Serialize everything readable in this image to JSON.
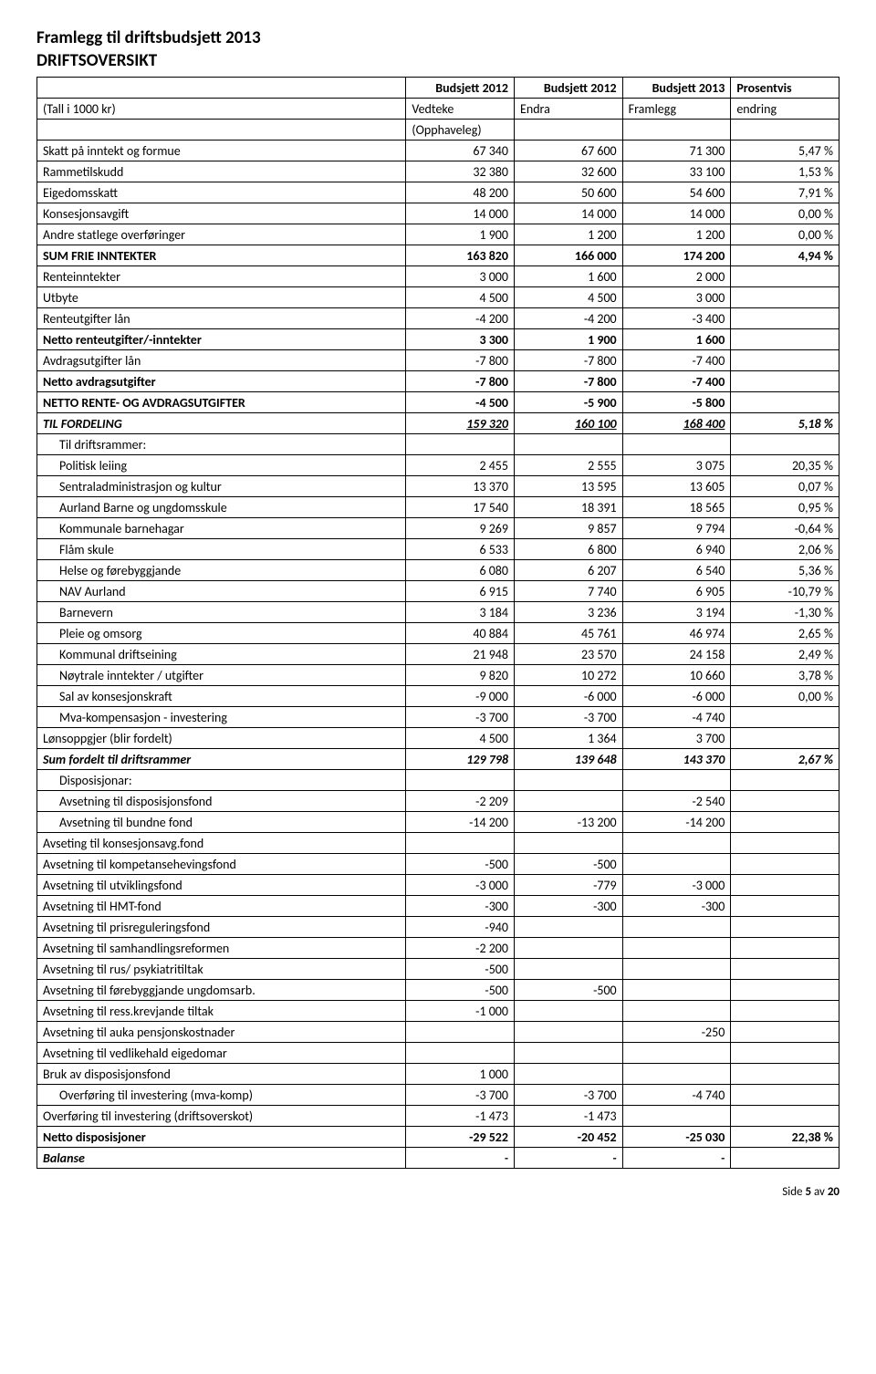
{
  "title1": "Framlegg til driftsbudsjett 2013",
  "title2": "DRIFTSOVERSIKT",
  "header": {
    "c1": "Budsjett 2012",
    "c2": "Budsjett 2012",
    "c3": "Budsjett 2013",
    "c4": "Prosentvis"
  },
  "sub": {
    "label": "(Tall i 1000 kr)",
    "c1": "Vedteke",
    "c2": "Endra",
    "c3": "Framlegg",
    "c4": "endring"
  },
  "opphaveleg": "(Opphaveleg)",
  "rows": [
    {
      "label": "Skatt på inntekt og formue",
      "c1": "67 340",
      "c2": "67 600",
      "c3": "71 300",
      "c4": "5,47 %"
    },
    {
      "label": "Rammetilskudd",
      "c1": "32 380",
      "c2": "32 600",
      "c3": "33 100",
      "c4": "1,53 %"
    },
    {
      "label": "Eigedomsskatt",
      "c1": "48 200",
      "c2": "50 600",
      "c3": "54 600",
      "c4": "7,91 %"
    },
    {
      "label": "Konsesjonsavgift",
      "c1": "14 000",
      "c2": "14 000",
      "c3": "14 000",
      "c4": "0,00 %"
    },
    {
      "label": "Andre statlege overføringer",
      "c1": "1 900",
      "c2": "1 200",
      "c3": "1 200",
      "c4": "0,00 %"
    },
    {
      "label": "SUM FRIE INNTEKTER",
      "c1": "163 820",
      "c2": "166 000",
      "c3": "174 200",
      "c4": "4,94 %",
      "style": "bold"
    },
    {
      "label": "Renteinntekter",
      "c1": "3 000",
      "c2": "1 600",
      "c3": "2 000",
      "c4": ""
    },
    {
      "label": "Utbyte",
      "c1": "4 500",
      "c2": "4 500",
      "c3": "3 000",
      "c4": ""
    },
    {
      "label": "Renteutgifter lån",
      "c1": "-4 200",
      "c2": "-4 200",
      "c3": "-3 400",
      "c4": ""
    },
    {
      "label": "Netto renteutgifter/-inntekter",
      "c1": "3 300",
      "c2": "1 900",
      "c3": "1 600",
      "c4": "",
      "style": "bold"
    },
    {
      "label": "Avdragsutgifter lån",
      "c1": "-7 800",
      "c2": "-7 800",
      "c3": "-7 400",
      "c4": ""
    },
    {
      "label": "Netto avdragsutgifter",
      "c1": "-7 800",
      "c2": "-7 800",
      "c3": "-7 400",
      "c4": "",
      "style": "bold"
    },
    {
      "label": "NETTO RENTE- OG AVDRAGSUTGIFTER",
      "c1": "-4 500",
      "c2": "-5 900",
      "c3": "-5 800",
      "c4": "",
      "style": "bold"
    },
    {
      "label": "TIL FORDELING",
      "c1": "159 320",
      "c2": "160 100",
      "c3": "168 400",
      "c4": "5,18 %",
      "style": "bold-italic",
      "underline": true
    },
    {
      "label": "Til driftsrammer:",
      "c1": "",
      "c2": "",
      "c3": "",
      "c4": "",
      "indent": true
    },
    {
      "label": "Politisk leiing",
      "c1": "2 455",
      "c2": "2 555",
      "c3": "3 075",
      "c4": "20,35 %",
      "indent": true
    },
    {
      "label": "Sentraladministrasjon og kultur",
      "c1": "13 370",
      "c2": "13 595",
      "c3": "13 605",
      "c4": "0,07 %",
      "indent": true
    },
    {
      "label": "Aurland Barne og ungdomsskule",
      "c1": "17 540",
      "c2": "18 391",
      "c3": "18 565",
      "c4": "0,95 %",
      "indent": true
    },
    {
      "label": "Kommunale barnehagar",
      "c1": "9 269",
      "c2": "9 857",
      "c3": "9 794",
      "c4": "-0,64 %",
      "indent": true
    },
    {
      "label": "Flåm skule",
      "c1": "6 533",
      "c2": "6 800",
      "c3": "6 940",
      "c4": "2,06 %",
      "indent": true
    },
    {
      "label": "Helse og førebyggjande",
      "c1": "6 080",
      "c2": "6 207",
      "c3": "6 540",
      "c4": "5,36 %",
      "indent": true
    },
    {
      "label": "NAV Aurland",
      "c1": "6 915",
      "c2": "7 740",
      "c3": "6 905",
      "c4": "-10,79 %",
      "indent": true
    },
    {
      "label": "Barnevern",
      "c1": "3 184",
      "c2": "3 236",
      "c3": "3 194",
      "c4": "-1,30 %",
      "indent": true
    },
    {
      "label": "Pleie og omsorg",
      "c1": "40 884",
      "c2": "45 761",
      "c3": "46 974",
      "c4": "2,65 %",
      "indent": true
    },
    {
      "label": "Kommunal driftseining",
      "c1": "21 948",
      "c2": "23 570",
      "c3": "24 158",
      "c4": "2,49 %",
      "indent": true
    },
    {
      "label": "Nøytrale inntekter / utgifter",
      "c1": "9 820",
      "c2": "10 272",
      "c3": "10 660",
      "c4": "3,78 %",
      "indent": true
    },
    {
      "label": "Sal av konsesjonskraft",
      "c1": "-9 000",
      "c2": "-6 000",
      "c3": "-6 000",
      "c4": "0,00 %",
      "indent": true
    },
    {
      "label": "Mva-kompensasjon - investering",
      "c1": "-3 700",
      "c2": "-3 700",
      "c3": "-4 740",
      "c4": "",
      "indent": true
    },
    {
      "label": "Lønsoppgjer (blir fordelt)",
      "c1": "4 500",
      "c2": "1 364",
      "c3": "3 700",
      "c4": ""
    },
    {
      "label": "Sum fordelt til driftsrammer",
      "c1": "129 798",
      "c2": "139 648",
      "c3": "143 370",
      "c4": "2,67 %",
      "style": "bold-italic"
    },
    {
      "label": "Disposisjonar:",
      "c1": "",
      "c2": "",
      "c3": "",
      "c4": "",
      "indent": true
    },
    {
      "label": "Avsetning til disposisjonsfond",
      "c1": "-2 209",
      "c2": "",
      "c3": "-2 540",
      "c4": "",
      "indent": true
    },
    {
      "label": "Avsetning til bundne fond",
      "c1": "-14 200",
      "c2": "-13 200",
      "c3": "-14 200",
      "c4": "",
      "indent": true
    },
    {
      "label": "Avseting til konsesjonsavg.fond",
      "c1": "",
      "c2": "",
      "c3": "",
      "c4": ""
    },
    {
      "label": "Avsetning til kompetansehevingsfond",
      "c1": "-500",
      "c2": "-500",
      "c3": "",
      "c4": ""
    },
    {
      "label": "Avsetning til utviklingsfond",
      "c1": "-3 000",
      "c2": "-779",
      "c3": "-3 000",
      "c4": ""
    },
    {
      "label": "Avsetning til HMT-fond",
      "c1": "-300",
      "c2": "-300",
      "c3": "-300",
      "c4": ""
    },
    {
      "label": "Avsetning til prisreguleringsfond",
      "c1": "-940",
      "c2": "",
      "c3": "",
      "c4": ""
    },
    {
      "label": "Avsetning til samhandlingsreformen",
      "c1": "-2 200",
      "c2": "",
      "c3": "",
      "c4": ""
    },
    {
      "label": "Avsetning til rus/ psykiatritiltak",
      "c1": "-500",
      "c2": "",
      "c3": "",
      "c4": ""
    },
    {
      "label": "Avsetning til førebyggjande ungdomsarb.",
      "c1": "-500",
      "c2": "-500",
      "c3": "",
      "c4": ""
    },
    {
      "label": "Avsetning til ress.krevjande tiltak",
      "c1": "-1 000",
      "c2": "",
      "c3": "",
      "c4": ""
    },
    {
      "label": "Avsetning til auka pensjonskostnader",
      "c1": "",
      "c2": "",
      "c3": "-250",
      "c4": ""
    },
    {
      "label": "Avsetning til vedlikehald eigedomar",
      "c1": "",
      "c2": "",
      "c3": "",
      "c4": ""
    },
    {
      "label": "Bruk av disposisjonsfond",
      "c1": "1 000",
      "c2": "",
      "c3": "",
      "c4": ""
    },
    {
      "label": "Overføring til investering (mva-komp)",
      "c1": "-3 700",
      "c2": "-3 700",
      "c3": "-4 740",
      "c4": "",
      "indent": true
    },
    {
      "label": "Overføring til investering (driftsoverskot)",
      "c1": "-1 473",
      "c2": "-1 473",
      "c3": "",
      "c4": ""
    },
    {
      "label": "Netto disposisjoner",
      "c1": "-29 522",
      "c2": "-20 452",
      "c3": "-25 030",
      "c4": "22,38 %",
      "style": "bold"
    },
    {
      "label": "Balanse",
      "c1": "-",
      "c2": "-",
      "c3": "-",
      "c4": "",
      "style": "bold-italic"
    }
  ],
  "footer": {
    "pre": "Side ",
    "page": "5",
    "mid": " av ",
    "total": "20"
  }
}
